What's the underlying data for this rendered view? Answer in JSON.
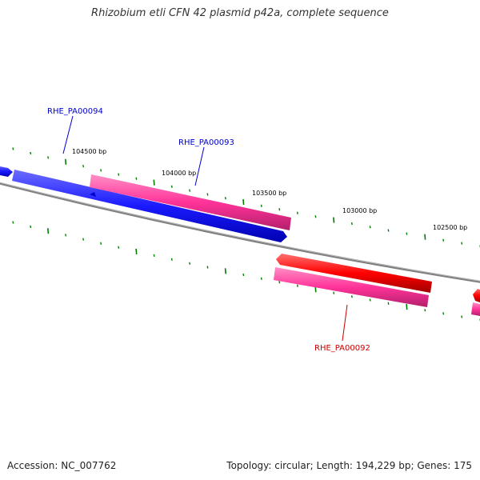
{
  "title": "Rhizobium etli CFN 42 plasmid p42a, complete sequence",
  "footer": {
    "accession": "Accession: NC_007762",
    "summary": "Topology: circular; Length: 194,229 bp; Genes: 175"
  },
  "ticks": [
    {
      "label": "104500 bp"
    },
    {
      "label": "104000 bp"
    },
    {
      "label": "103500 bp"
    },
    {
      "label": "103000 bp"
    },
    {
      "label": "102500 bp"
    }
  ],
  "gene_labels": [
    {
      "label": "RHE_PA00094",
      "color": "#0000cc"
    },
    {
      "label": "RHE_PA00093",
      "color": "#0000cc"
    },
    {
      "label": "RHE_PA00092",
      "color": "#cc0000"
    }
  ],
  "colors": {
    "forward_cds": "#0000ff",
    "forward_gene": "#ff3399",
    "reverse_cds": "#ff0000",
    "reverse_gene": "#ff3399",
    "backbone": "#808080",
    "tick": "#008000"
  }
}
